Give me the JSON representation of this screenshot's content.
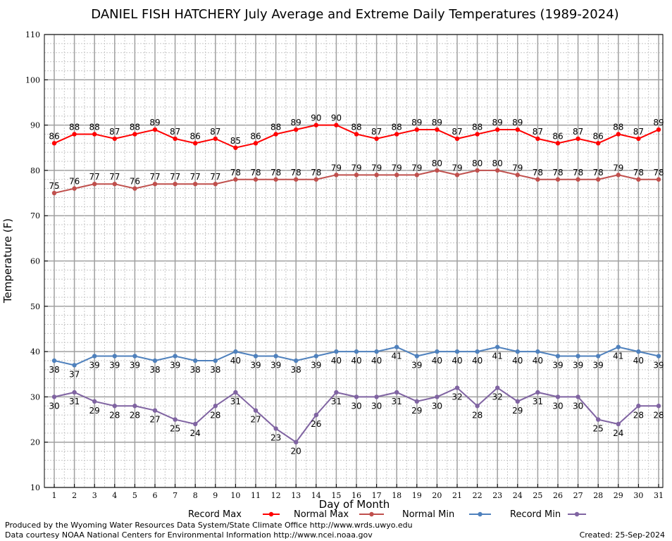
{
  "chart_data": {
    "type": "line",
    "title": "DANIEL FISH HATCHERY July Average and Extreme Daily Temperatures (1989-2024)",
    "xlabel": "Day of Month",
    "ylabel": "Temperature (F)",
    "ylim": [
      10,
      110
    ],
    "yticks": [
      10,
      20,
      30,
      40,
      50,
      60,
      70,
      80,
      90,
      100,
      110
    ],
    "x": [
      1,
      2,
      3,
      4,
      5,
      6,
      7,
      8,
      9,
      10,
      11,
      12,
      13,
      14,
      15,
      16,
      17,
      18,
      19,
      20,
      21,
      22,
      23,
      24,
      25,
      26,
      27,
      28,
      29,
      30,
      31
    ],
    "grid": true,
    "legend_position": "bottom",
    "series": [
      {
        "name": "Record Max",
        "color": "#ff0000",
        "label_position": "above",
        "values": [
          86,
          88,
          88,
          87,
          88,
          89,
          87,
          86,
          87,
          85,
          86,
          88,
          89,
          90,
          90,
          88,
          87,
          88,
          89,
          89,
          87,
          88,
          89,
          89,
          87,
          86,
          87,
          86,
          88,
          87,
          89
        ]
      },
      {
        "name": "Normal Max",
        "color": "#c0504d",
        "label_position": "above",
        "values": [
          75,
          76,
          77,
          77,
          76,
          77,
          77,
          77,
          77,
          78,
          78,
          78,
          78,
          78,
          79,
          79,
          79,
          79,
          79,
          80,
          79,
          80,
          80,
          79,
          78,
          78,
          78,
          78,
          79,
          78,
          78
        ]
      },
      {
        "name": "Normal Min",
        "color": "#4f81bd",
        "label_position": "below",
        "values": [
          38,
          37,
          39,
          39,
          39,
          38,
          39,
          38,
          38,
          40,
          39,
          39,
          38,
          39,
          40,
          40,
          40,
          41,
          39,
          40,
          40,
          40,
          41,
          40,
          40,
          39,
          39,
          39,
          41,
          40,
          39
        ]
      },
      {
        "name": "Record Min",
        "color": "#8064a2",
        "label_position": "below",
        "values": [
          30,
          31,
          29,
          28,
          28,
          27,
          25,
          24,
          28,
          31,
          27,
          23,
          20,
          26,
          31,
          30,
          30,
          31,
          29,
          30,
          32,
          28,
          32,
          29,
          31,
          30,
          30,
          25,
          24,
          28,
          28
        ]
      }
    ]
  },
  "footer": {
    "credit_line1": "Produced by the Wyoming Water Resources Data System/State Climate Office http://www.wrds.uwyo.edu",
    "credit_line2": "Data courtesy NOAA National Centers for Environmental Information http://www.ncei.noaa.gov",
    "created": "Created:  25-Sep-2024"
  }
}
